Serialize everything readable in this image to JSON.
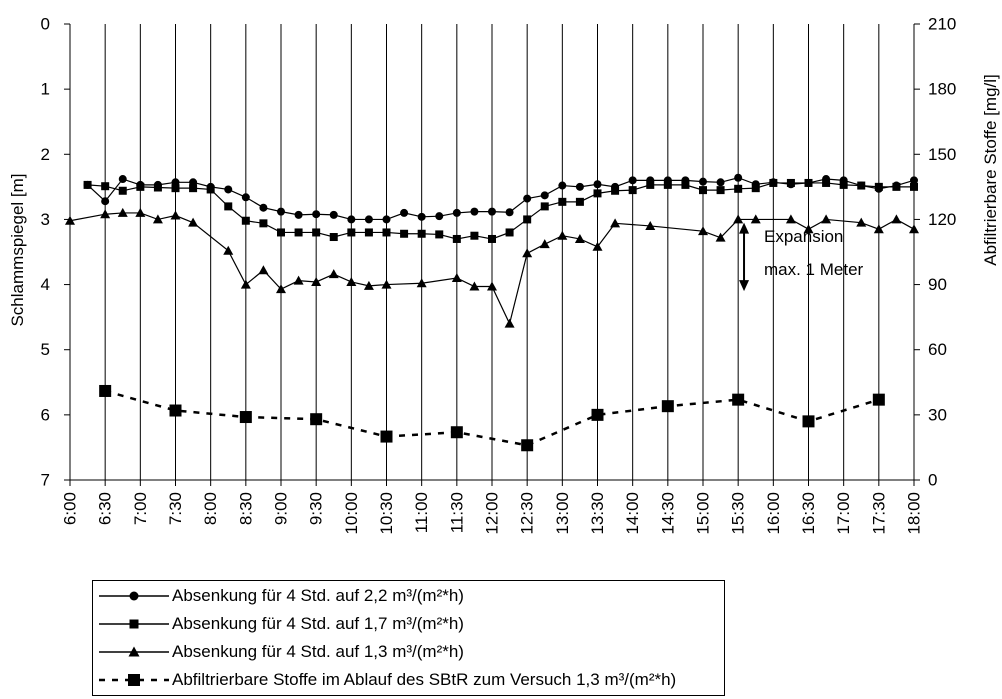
{
  "chart_data": {
    "type": "line",
    "x_label": "",
    "y_label_left": "Schlammspiegel [m]",
    "y_label_right": "Abfiltrierbare Stoffe [mg/l]",
    "x_ticks": [
      "6:00",
      "6:30",
      "7:00",
      "7:30",
      "8:00",
      "8:30",
      "9:00",
      "9:30",
      "10:00",
      "10:30",
      "11:00",
      "11:30",
      "12:00",
      "12:30",
      "13:00",
      "13:30",
      "14:00",
      "14:30",
      "15:00",
      "15:30",
      "16:00",
      "16:30",
      "17:00",
      "17:30",
      "18:00"
    ],
    "y_left_ticks": [
      "0",
      "1",
      "2",
      "3",
      "4",
      "5",
      "6",
      "7"
    ],
    "y_right_ticks": [
      "0",
      "30",
      "60",
      "90",
      "120",
      "150",
      "180",
      "210"
    ],
    "y_left_range": [
      7,
      0
    ],
    "y_left_inverted": true,
    "y_right_range": [
      0,
      210
    ],
    "grid": "vertical",
    "series": [
      {
        "name": "Absenkung für 4 Std. auf 2,2 m³/(m²*h)",
        "axis": "left",
        "marker": "circle",
        "line": "solid",
        "x": [
          "6:15",
          "6:30",
          "6:45",
          "7:00",
          "7:15",
          "7:30",
          "7:45",
          "8:00",
          "8:15",
          "8:30",
          "8:45",
          "9:00",
          "9:15",
          "9:30",
          "9:45",
          "10:00",
          "10:15",
          "10:30",
          "10:45",
          "11:00",
          "11:15",
          "11:30",
          "11:45",
          "12:00",
          "12:15",
          "12:30",
          "12:45",
          "13:00",
          "13:15",
          "13:30",
          "13:45",
          "14:00",
          "14:15",
          "14:30",
          "14:45",
          "15:00",
          "15:15",
          "15:30",
          "15:45",
          "16:00",
          "16:15",
          "16:30",
          "16:45",
          "17:00",
          "17:15",
          "17:30",
          "17:45",
          "18:00"
        ],
        "y": [
          2.47,
          2.72,
          2.38,
          2.47,
          2.47,
          2.43,
          2.43,
          2.5,
          2.54,
          2.66,
          2.82,
          2.88,
          2.93,
          2.92,
          2.93,
          3.0,
          3.0,
          3.0,
          2.9,
          2.96,
          2.95,
          2.9,
          2.88,
          2.88,
          2.89,
          2.68,
          2.63,
          2.48,
          2.5,
          2.46,
          2.5,
          2.4,
          2.4,
          2.4,
          2.4,
          2.42,
          2.43,
          2.36,
          2.46,
          2.43,
          2.46,
          2.44,
          2.38,
          2.4,
          2.48,
          2.53,
          2.48,
          2.4
        ]
      },
      {
        "name": "Absenkung für 4 Std. auf 1,7 m³/(m²*h)",
        "axis": "left",
        "marker": "square",
        "line": "solid",
        "x": [
          "6:15",
          "6:30",
          "6:45",
          "7:00",
          "7:15",
          "7:30",
          "7:45",
          "8:00",
          "8:15",
          "8:30",
          "8:45",
          "9:00",
          "9:15",
          "9:30",
          "9:45",
          "10:00",
          "10:15",
          "10:30",
          "10:45",
          "11:00",
          "11:15",
          "11:30",
          "11:45",
          "12:00",
          "12:15",
          "12:30",
          "12:45",
          "13:00",
          "13:15",
          "13:30",
          "13:45",
          "14:00",
          "14:15",
          "14:30",
          "14:45",
          "15:00",
          "15:15",
          "15:30",
          "15:45",
          "16:00",
          "16:15",
          "16:30",
          "16:45",
          "17:00",
          "17:15",
          "17:30",
          "17:45",
          "18:00"
        ],
        "y": [
          2.47,
          2.49,
          2.56,
          2.5,
          2.51,
          2.52,
          2.52,
          2.54,
          2.8,
          3.02,
          3.06,
          3.2,
          3.2,
          3.2,
          3.27,
          3.2,
          3.2,
          3.2,
          3.22,
          3.22,
          3.23,
          3.3,
          3.25,
          3.3,
          3.2,
          3.0,
          2.8,
          2.73,
          2.73,
          2.6,
          2.56,
          2.55,
          2.47,
          2.47,
          2.47,
          2.55,
          2.55,
          2.53,
          2.52,
          2.44,
          2.44,
          2.44,
          2.44,
          2.47,
          2.48,
          2.5,
          2.5,
          2.5
        ]
      },
      {
        "name": "Absenkung für 4 Std. auf 1,3 m³/(m²*h)",
        "axis": "left",
        "marker": "triangle",
        "line": "solid",
        "x": [
          "6:00",
          "6:30",
          "6:45",
          "7:00",
          "7:15",
          "7:30",
          "7:45",
          "8:15",
          "8:30",
          "8:45",
          "9:00",
          "9:15",
          "9:30",
          "9:45",
          "10:00",
          "10:15",
          "10:30",
          "11:00",
          "11:30",
          "11:45",
          "12:00",
          "12:15",
          "12:30",
          "12:45",
          "13:00",
          "13:15",
          "13:30",
          "13:45",
          "14:15",
          "15:00",
          "15:15",
          "15:30",
          "15:45",
          "16:15",
          "16:30",
          "16:45",
          "17:15",
          "17:30",
          "17:45",
          "18:00"
        ],
        "y": [
          3.02,
          2.92,
          2.9,
          2.9,
          3.0,
          2.94,
          3.05,
          3.48,
          4.0,
          3.78,
          4.07,
          3.94,
          3.96,
          3.84,
          3.96,
          4.02,
          4.0,
          3.98,
          3.9,
          4.03,
          4.03,
          4.6,
          3.52,
          3.38,
          3.25,
          3.3,
          3.42,
          3.06,
          3.1,
          3.18,
          3.28,
          3.0,
          3.0,
          3.0,
          3.15,
          3.0,
          3.05,
          3.15,
          3.0,
          3.15
        ]
      },
      {
        "name": "Abfiltrierbare Stoffe im Ablauf des SBtR zum Versuch 1,3 m³/(m²*h)",
        "axis": "right",
        "marker": "square",
        "line": "dashed",
        "x": [
          "6:30",
          "7:30",
          "8:30",
          "9:30",
          "10:30",
          "11:30",
          "12:30",
          "13:30",
          "14:30",
          "15:30",
          "16:30",
          "17:30"
        ],
        "y": [
          41,
          32,
          29,
          28,
          20,
          22,
          16,
          30,
          34,
          37,
          27,
          37
        ]
      }
    ],
    "annotation": {
      "line1": "Expansion",
      "line2": "max. 1 Meter",
      "at_x": "15:35",
      "y_from": 3.05,
      "y_to": 4.1
    }
  }
}
